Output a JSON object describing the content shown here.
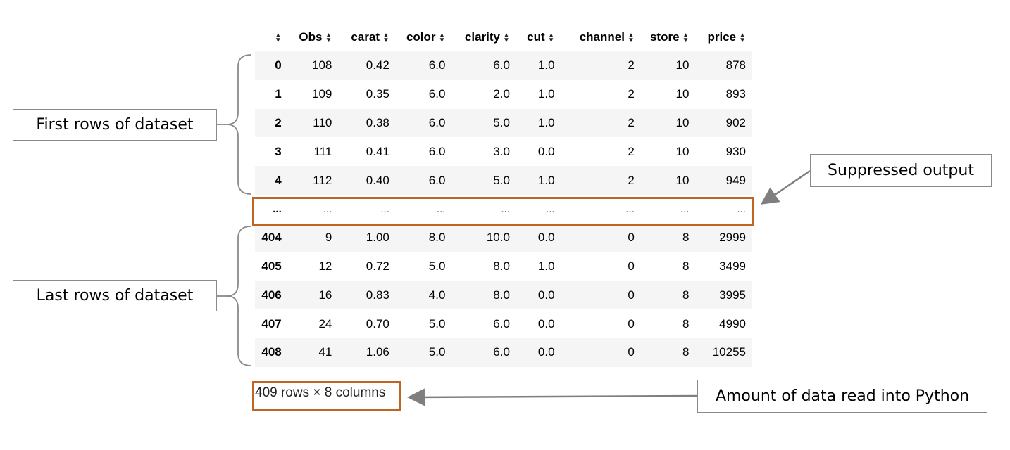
{
  "table": {
    "columns": [
      "",
      "Obs",
      "carat",
      "color",
      "clarity",
      "cut",
      "channel",
      "store",
      "price"
    ],
    "head_rows": [
      [
        "0",
        "108",
        "0.42",
        "6.0",
        "6.0",
        "1.0",
        "2",
        "10",
        "878"
      ],
      [
        "1",
        "109",
        "0.35",
        "6.0",
        "2.0",
        "1.0",
        "2",
        "10",
        "893"
      ],
      [
        "2",
        "110",
        "0.38",
        "6.0",
        "5.0",
        "1.0",
        "2",
        "10",
        "902"
      ],
      [
        "3",
        "111",
        "0.41",
        "6.0",
        "3.0",
        "0.0",
        "2",
        "10",
        "930"
      ],
      [
        "4",
        "112",
        "0.40",
        "6.0",
        "5.0",
        "1.0",
        "2",
        "10",
        "949"
      ]
    ],
    "ellipsis_row": [
      "...",
      "...",
      "...",
      "...",
      "...",
      "...",
      "...",
      "...",
      "..."
    ],
    "tail_rows": [
      [
        "404",
        "9",
        "1.00",
        "8.0",
        "10.0",
        "0.0",
        "0",
        "8",
        "2999"
      ],
      [
        "405",
        "12",
        "0.72",
        "5.0",
        "8.0",
        "1.0",
        "0",
        "8",
        "3499"
      ],
      [
        "406",
        "16",
        "0.83",
        "4.0",
        "8.0",
        "0.0",
        "0",
        "8",
        "3995"
      ],
      [
        "407",
        "24",
        "0.70",
        "5.0",
        "6.0",
        "0.0",
        "0",
        "8",
        "4990"
      ],
      [
        "408",
        "41",
        "1.06",
        "5.0",
        "6.0",
        "0.0",
        "0",
        "8",
        "10255"
      ]
    ],
    "summary": "409 rows × 8 columns"
  },
  "annotations": {
    "first_rows": "First rows of dataset",
    "last_rows": "Last rows of dataset",
    "suppressed": "Suppressed output",
    "amount": "Amount of data read into Python"
  },
  "colors": {
    "highlight": "#c0651f",
    "stripe": "#f5f5f5",
    "annotation_border": "#8a8a8a"
  },
  "icons": {
    "sort": "sort-arrows-icon"
  }
}
